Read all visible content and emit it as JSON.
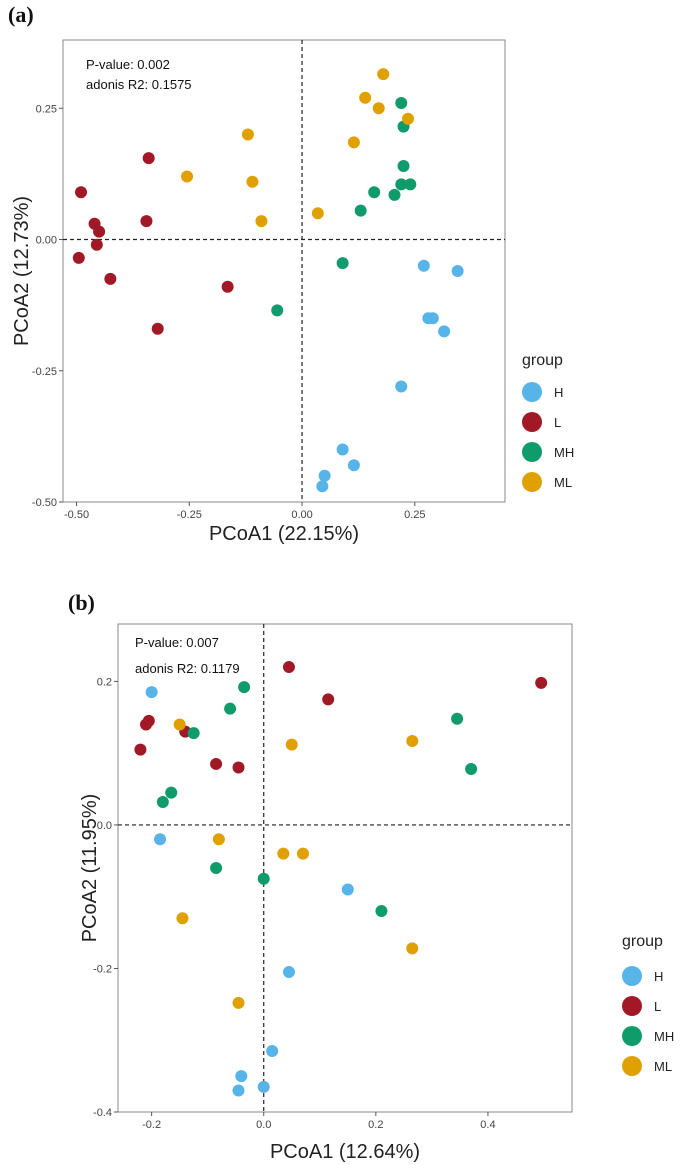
{
  "chart_data": [
    {
      "type": "scatter",
      "panel": "(a)",
      "xlabel": "PCoA1 (22.15%)",
      "ylabel": "PCoA2 (12.73%)",
      "xlim": [
        -0.53,
        0.45
      ],
      "ylim": [
        -0.5,
        0.38
      ],
      "xticks": [
        -0.5,
        -0.25,
        0.0,
        0.25
      ],
      "xtick_labels": [
        "-0.50",
        "-0.25",
        "0.00",
        "0.25"
      ],
      "yticks": [
        0.25,
        0.0,
        -0.25,
        -0.5
      ],
      "ytick_labels": [
        "0.25",
        "0.00",
        "-0.25",
        "-0.50"
      ],
      "annotations": [
        "P-value: 0.002",
        "adonis R2: 0.1575"
      ],
      "grid": false,
      "reference_lines": "dashed lines at x=0 and y=0",
      "legend": {
        "title": "group",
        "placement": "right"
      },
      "series": [
        {
          "name": "H",
          "color": "#56B4E9",
          "points": [
            [
              0.27,
              -0.05
            ],
            [
              0.345,
              -0.06
            ],
            [
              0.28,
              -0.15
            ],
            [
              0.29,
              -0.15
            ],
            [
              0.315,
              -0.175
            ],
            [
              0.22,
              -0.28
            ],
            [
              0.09,
              -0.4
            ],
            [
              0.115,
              -0.43
            ],
            [
              0.05,
              -0.45
            ],
            [
              0.045,
              -0.47
            ]
          ]
        },
        {
          "name": "L",
          "color": "#A11826",
          "points": [
            [
              -0.49,
              0.09
            ],
            [
              -0.46,
              0.03
            ],
            [
              -0.45,
              0.015
            ],
            [
              -0.455,
              -0.01
            ],
            [
              -0.495,
              -0.035
            ],
            [
              -0.425,
              -0.075
            ],
            [
              -0.345,
              0.035
            ],
            [
              -0.34,
              0.155
            ],
            [
              -0.32,
              -0.17
            ],
            [
              -0.165,
              -0.09
            ]
          ]
        },
        {
          "name": "MH",
          "color": "#109B6A",
          "points": [
            [
              0.22,
              0.26
            ],
            [
              0.225,
              0.215
            ],
            [
              0.225,
              0.14
            ],
            [
              0.24,
              0.105
            ],
            [
              0.22,
              0.105
            ],
            [
              0.205,
              0.085
            ],
            [
              0.16,
              0.09
            ],
            [
              0.13,
              0.055
            ],
            [
              0.09,
              -0.045
            ],
            [
              -0.055,
              -0.135
            ]
          ]
        },
        {
          "name": "ML",
          "color": "#E0A000",
          "points": [
            [
              0.18,
              0.315
            ],
            [
              0.14,
              0.27
            ],
            [
              0.17,
              0.25
            ],
            [
              0.235,
              0.23
            ],
            [
              0.115,
              0.185
            ],
            [
              0.035,
              0.05
            ],
            [
              -0.12,
              0.2
            ],
            [
              -0.11,
              0.11
            ],
            [
              -0.09,
              0.035
            ],
            [
              -0.255,
              0.12
            ]
          ]
        }
      ]
    },
    {
      "type": "scatter",
      "panel": "(b)",
      "xlabel": "PCoA1 (12.64%)",
      "ylabel": "PCoA2 (11.95%)",
      "xlim": [
        -0.26,
        0.55
      ],
      "ylim": [
        -0.4,
        0.28
      ],
      "xticks": [
        -0.2,
        0.0,
        0.2,
        0.4
      ],
      "xtick_labels": [
        "-0.2",
        "0.0",
        "0.2",
        "0.4"
      ],
      "yticks": [
        0.2,
        0.0,
        -0.2,
        -0.4
      ],
      "ytick_labels": [
        "0.2",
        "0.0",
        "-0.2",
        "-0.4"
      ],
      "annotations": [
        "P-value: 0.007",
        "adonis R2: 0.1179"
      ],
      "grid": false,
      "reference_lines": "dashed lines at x=0 and y=0",
      "legend": {
        "title": "group",
        "placement": "right"
      },
      "series": [
        {
          "name": "H",
          "color": "#56B4E9",
          "points": [
            [
              -0.2,
              0.185
            ],
            [
              -0.185,
              -0.02
            ],
            [
              0.15,
              -0.09
            ],
            [
              0.045,
              -0.205
            ],
            [
              0.015,
              -0.315
            ],
            [
              -0.04,
              -0.35
            ],
            [
              -0.045,
              -0.37
            ],
            [
              0.0,
              -0.365
            ]
          ]
        },
        {
          "name": "L",
          "color": "#A11826",
          "points": [
            [
              -0.205,
              0.145
            ],
            [
              -0.21,
              0.14
            ],
            [
              -0.22,
              0.105
            ],
            [
              -0.14,
              0.13
            ],
            [
              -0.085,
              0.085
            ],
            [
              -0.045,
              0.08
            ],
            [
              0.045,
              0.22
            ],
            [
              0.115,
              0.175
            ],
            [
              0.495,
              0.198
            ]
          ]
        },
        {
          "name": "MH",
          "color": "#109B6A",
          "points": [
            [
              -0.035,
              0.192
            ],
            [
              -0.06,
              0.162
            ],
            [
              -0.125,
              0.128
            ],
            [
              -0.165,
              0.045
            ],
            [
              -0.18,
              0.032
            ],
            [
              0.345,
              0.148
            ],
            [
              0.37,
              0.078
            ],
            [
              -0.085,
              -0.06
            ],
            [
              0.0,
              -0.075
            ],
            [
              0.21,
              -0.12
            ]
          ]
        },
        {
          "name": "ML",
          "color": "#E0A000",
          "points": [
            [
              -0.15,
              0.14
            ],
            [
              0.05,
              0.112
            ],
            [
              0.265,
              0.117
            ],
            [
              -0.08,
              -0.02
            ],
            [
              0.035,
              -0.04
            ],
            [
              0.07,
              -0.04
            ],
            [
              -0.145,
              -0.13
            ],
            [
              0.265,
              -0.172
            ],
            [
              -0.045,
              -0.248
            ]
          ]
        }
      ]
    }
  ]
}
